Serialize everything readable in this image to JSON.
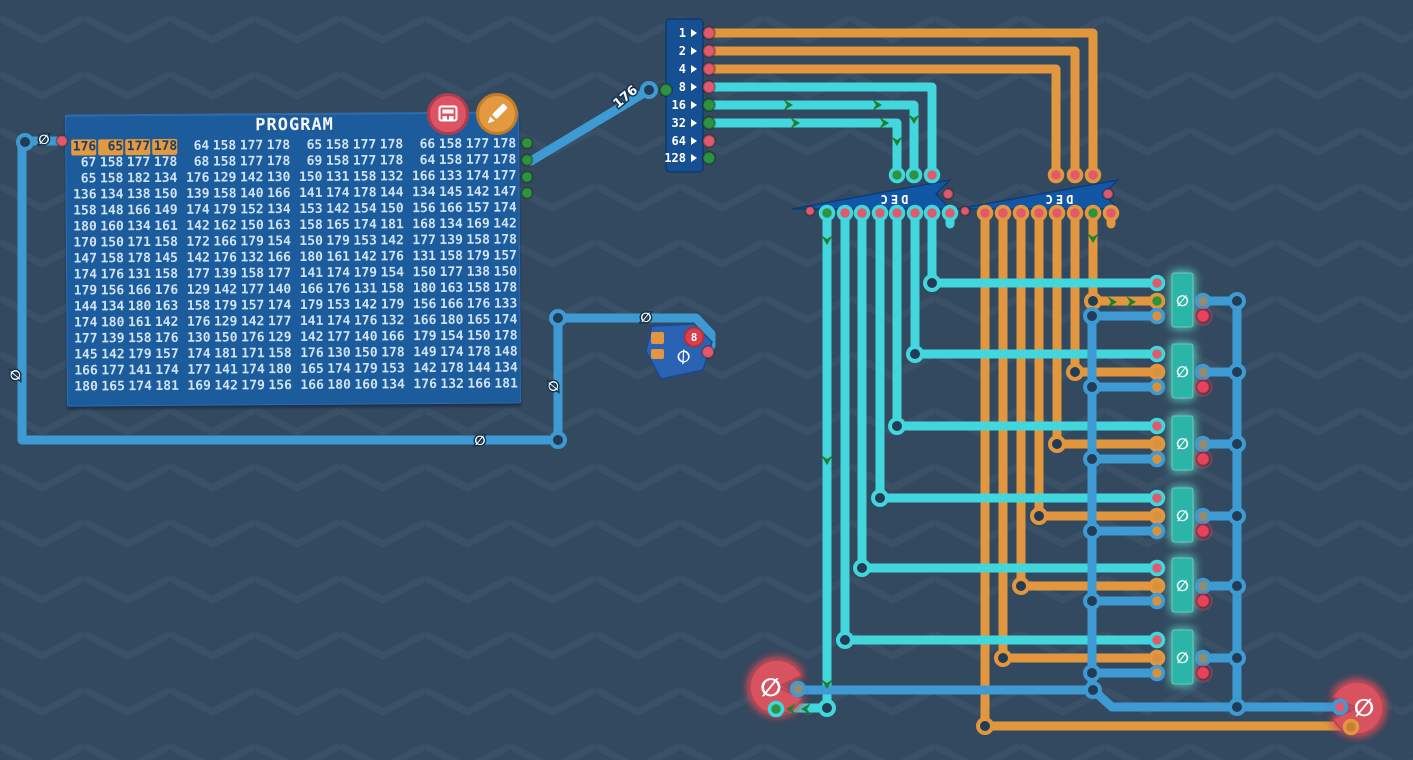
{
  "colors": {
    "background": "#33495f",
    "chevron": "#3e566d",
    "wire_blue": "#3d9ad3",
    "wire_cyan": "#41d7dd",
    "wire_orange": "#e2973f",
    "node_dark": "#223c55",
    "state_on": "#2f9240",
    "state_off": "#e05a6d",
    "pin_orange": "#d8913c",
    "output_gray": "#938c6f",
    "led_red": "#e8435a",
    "component_blue": "#1d5c9c",
    "dec_blue": "#1256a6",
    "splitter_blue": "#174f93",
    "register_teal": "#29b5a8",
    "counter_red": "#d85361",
    "pc_blue": "#2b63b4",
    "highlight_orange": "#e2993f",
    "arrow_green": "#1e8030",
    "text_light": "#cfe3f3",
    "text_dark": "#1b3f66"
  },
  "program": {
    "title": "PROGRAM",
    "highlight": {
      "row": 0,
      "cols": [
        0,
        1,
        2,
        3
      ]
    },
    "rows": [
      [
        176,
        65,
        177,
        178,
        64,
        158,
        177,
        178,
        65,
        158,
        177,
        178,
        66,
        158,
        177,
        178
      ],
      [
        67,
        158,
        177,
        178,
        68,
        158,
        177,
        178,
        69,
        158,
        177,
        178,
        64,
        158,
        177,
        178
      ],
      [
        65,
        158,
        182,
        134,
        176,
        129,
        142,
        130,
        150,
        131,
        158,
        132,
        166,
        133,
        174,
        177
      ],
      [
        136,
        134,
        138,
        150,
        139,
        158,
        140,
        166,
        141,
        174,
        178,
        144,
        134,
        145,
        142,
        147
      ],
      [
        158,
        148,
        166,
        149,
        174,
        179,
        152,
        134,
        153,
        142,
        154,
        150,
        156,
        166,
        157,
        174
      ],
      [
        180,
        160,
        134,
        161,
        142,
        162,
        150,
        163,
        158,
        165,
        174,
        181,
        168,
        134,
        169,
        142
      ],
      [
        170,
        150,
        171,
        158,
        172,
        166,
        179,
        154,
        150,
        179,
        153,
        142,
        177,
        139,
        158,
        178
      ],
      [
        147,
        158,
        178,
        145,
        142,
        176,
        132,
        166,
        180,
        161,
        142,
        176,
        131,
        158,
        179,
        157
      ],
      [
        174,
        176,
        131,
        158,
        177,
        139,
        158,
        177,
        141,
        174,
        179,
        154,
        150,
        177,
        138,
        150
      ],
      [
        179,
        156,
        166,
        176,
        129,
        142,
        177,
        140,
        166,
        176,
        131,
        158,
        180,
        163,
        158,
        178
      ],
      [
        144,
        134,
        180,
        163,
        158,
        179,
        157,
        174,
        179,
        153,
        142,
        179,
        156,
        166,
        176,
        133
      ],
      [
        174,
        180,
        161,
        142,
        176,
        129,
        142,
        177,
        141,
        174,
        176,
        132,
        166,
        180,
        165,
        174
      ],
      [
        177,
        139,
        158,
        176,
        130,
        150,
        176,
        129,
        142,
        177,
        140,
        166,
        179,
        154,
        150,
        178
      ],
      [
        145,
        142,
        179,
        157,
        174,
        181,
        171,
        158,
        176,
        130,
        150,
        178,
        149,
        174,
        178,
        148
      ],
      [
        166,
        177,
        141,
        174,
        177,
        141,
        174,
        180,
        165,
        174,
        179,
        153,
        142,
        178,
        144,
        134
      ],
      [
        180,
        165,
        174,
        181,
        169,
        142,
        179,
        156,
        166,
        180,
        160,
        134,
        176,
        132,
        166,
        181
      ]
    ],
    "input_pin_state": "off",
    "output_pin_states": [
      "on",
      "on",
      "on",
      "on"
    ]
  },
  "buttons": {
    "view": {
      "icon": "memory-grid-icon"
    },
    "edit": {
      "icon": "pencil-icon"
    }
  },
  "splitter": {
    "input_state": "on",
    "bits": [
      {
        "label": "1",
        "state": "off"
      },
      {
        "label": "2",
        "state": "off"
      },
      {
        "label": "4",
        "state": "off"
      },
      {
        "label": "8",
        "state": "off"
      },
      {
        "label": "16",
        "state": "on"
      },
      {
        "label": "32",
        "state": "on"
      },
      {
        "label": "64",
        "state": "off"
      },
      {
        "label": "128",
        "state": "on"
      }
    ]
  },
  "decoders": [
    {
      "label": "DEC",
      "input_states": [
        "on",
        "on",
        "off"
      ],
      "output_states": [
        "on",
        "off",
        "off",
        "off",
        "off",
        "off",
        "off",
        "off"
      ]
    },
    {
      "label": "DEC",
      "input_states": [
        "off",
        "off",
        "off"
      ],
      "output_states": [
        "off",
        "off",
        "off",
        "off",
        "off",
        "off",
        "on",
        "off"
      ]
    }
  ],
  "registers": [
    {
      "value": "0",
      "selected": true
    },
    {
      "value": "0",
      "selected": false
    },
    {
      "value": "0",
      "selected": false
    },
    {
      "value": "0",
      "selected": false
    },
    {
      "value": "0",
      "selected": false
    },
    {
      "value": "0",
      "selected": false
    }
  ],
  "counters": {
    "left": {
      "value": "0"
    },
    "right": {
      "value": "0"
    }
  },
  "program_counter": {
    "value": "0",
    "badge": "8"
  },
  "wire_labels": [
    "0",
    "176",
    "0",
    "0",
    "0",
    "0"
  ]
}
